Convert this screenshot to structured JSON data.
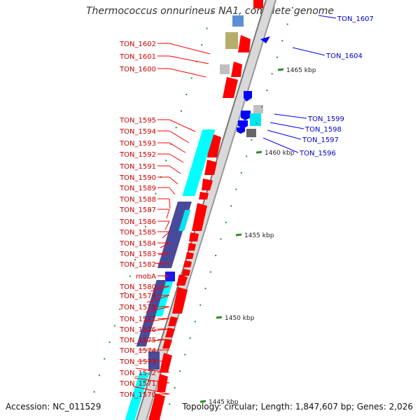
{
  "title": "Thermococcus onnurineus NA1, complete genome",
  "accession_text": "Accession: NC_011529",
  "topology_text": "Topology: circular; Length: 1,847,607 bp; Genes: 2,026",
  "colors": {
    "forward_gene": "#ff0000",
    "reverse_gene": "#0000ff",
    "forward_label": "#cc0000",
    "reverse_label": "#0000cc",
    "cyan_feature": "#00ffff",
    "dark_feature": "#4a4a9a",
    "tick": "#2e8b2e"
  },
  "scale_labels": [
    "1465 kbp",
    "1460 kbp",
    "1455 kbp",
    "1450 kbp",
    "1445 kbp"
  ],
  "reverse_labels": [
    "TON_1607",
    "TON_1604",
    "TON_1599",
    "TON_1598",
    "TON_1597",
    "TON_1596"
  ],
  "forward_labels": [
    "TON_1602",
    "TON_1601",
    "TON_1600",
    "TON_1595",
    "TON_1594",
    "TON_1593",
    "TON_1592",
    "TON_1591",
    "TON_1590",
    "TON_1589",
    "TON_1588",
    "TON_1587",
    "TON_1586",
    "TON_1585",
    "TON_1584",
    "TON_1583",
    "TON_1582",
    "mobA",
    "TON_1580",
    "TON_1579",
    "TON_1578",
    "TON_1577",
    "TON_1576",
    "TON_1575",
    "TON_1574",
    "TON_1573",
    "TON_1572",
    "TON_1571",
    "TON_1570"
  ]
}
